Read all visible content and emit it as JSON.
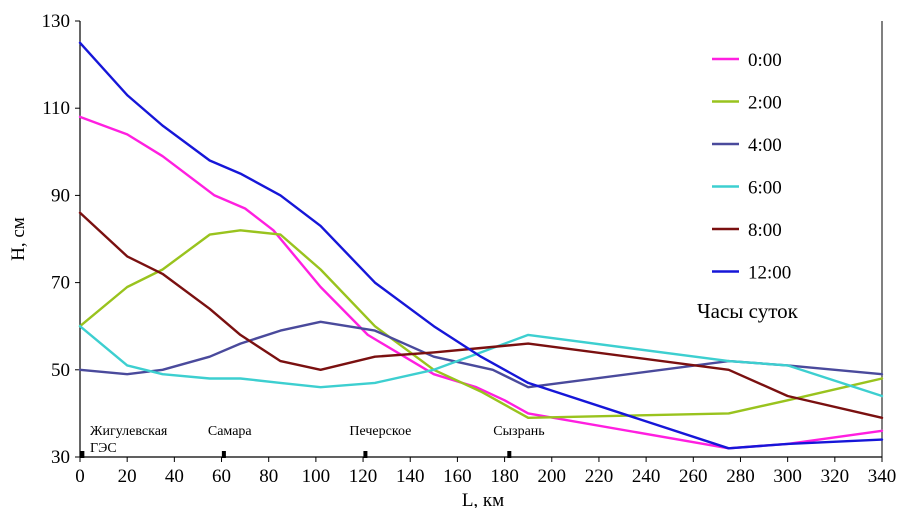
{
  "chart_data": {
    "type": "line",
    "xlabel": "L, км",
    "ylabel": "H, см",
    "xlim": [
      0,
      340
    ],
    "ylim": [
      30,
      130
    ],
    "xticks": [
      0,
      20,
      40,
      60,
      80,
      100,
      120,
      140,
      160,
      180,
      200,
      220,
      240,
      260,
      280,
      300,
      320,
      340
    ],
    "yticks": [
      30,
      50,
      70,
      90,
      110,
      130
    ],
    "grid": false,
    "legend_title": "Часы суток",
    "legend_position": "right",
    "annotations": [
      {
        "label": "Жигулевская ГЭС",
        "lines": [
          "Жигулевская",
          "ГЭС"
        ],
        "x": 1
      },
      {
        "label": "Самара",
        "lines": [
          "Самара"
        ],
        "x": 61
      },
      {
        "label": "Печерское",
        "lines": [
          "Печерское"
        ],
        "x": 121
      },
      {
        "label": "Сызрань",
        "lines": [
          "Сызрань"
        ],
        "x": 182
      }
    ],
    "series": [
      {
        "name": "0:00",
        "color": "#ff1fe0",
        "points": [
          [
            0,
            108
          ],
          [
            20,
            104
          ],
          [
            35,
            99
          ],
          [
            57,
            90
          ],
          [
            70,
            87
          ],
          [
            82,
            82
          ],
          [
            102,
            69
          ],
          [
            122,
            58
          ],
          [
            150,
            49
          ],
          [
            168,
            46
          ],
          [
            180,
            43
          ],
          [
            190,
            40
          ],
          [
            275,
            32
          ],
          [
            300,
            33
          ],
          [
            340,
            36
          ]
        ]
      },
      {
        "name": "2:00",
        "color": "#99c31e",
        "points": [
          [
            0,
            60
          ],
          [
            20,
            69
          ],
          [
            35,
            73
          ],
          [
            55,
            81
          ],
          [
            68,
            82
          ],
          [
            85,
            81
          ],
          [
            102,
            73
          ],
          [
            125,
            60
          ],
          [
            150,
            50
          ],
          [
            170,
            45
          ],
          [
            190,
            39
          ],
          [
            275,
            40
          ],
          [
            300,
            43
          ],
          [
            340,
            48
          ]
        ]
      },
      {
        "name": "4:00",
        "color": "#4a4a9c",
        "points": [
          [
            0,
            50
          ],
          [
            20,
            49
          ],
          [
            35,
            50
          ],
          [
            55,
            53
          ],
          [
            68,
            56
          ],
          [
            85,
            59
          ],
          [
            102,
            61
          ],
          [
            125,
            59
          ],
          [
            150,
            53
          ],
          [
            175,
            50
          ],
          [
            190,
            46
          ],
          [
            275,
            52
          ],
          [
            300,
            51
          ],
          [
            340,
            49
          ]
        ]
      },
      {
        "name": "6:00",
        "color": "#3dcfd0",
        "points": [
          [
            0,
            60
          ],
          [
            20,
            51
          ],
          [
            35,
            49
          ],
          [
            55,
            48
          ],
          [
            68,
            48
          ],
          [
            85,
            47
          ],
          [
            102,
            46
          ],
          [
            125,
            47
          ],
          [
            150,
            50
          ],
          [
            170,
            54
          ],
          [
            190,
            58
          ],
          [
            275,
            52
          ],
          [
            300,
            51
          ],
          [
            340,
            44
          ]
        ]
      },
      {
        "name": "8:00",
        "color": "#7a1010",
        "points": [
          [
            0,
            86
          ],
          [
            20,
            76
          ],
          [
            35,
            72
          ],
          [
            55,
            64
          ],
          [
            68,
            58
          ],
          [
            85,
            52
          ],
          [
            102,
            50
          ],
          [
            125,
            53
          ],
          [
            150,
            54
          ],
          [
            170,
            55
          ],
          [
            190,
            56
          ],
          [
            275,
            50
          ],
          [
            300,
            44
          ],
          [
            340,
            39
          ]
        ]
      },
      {
        "name": "12:00",
        "color": "#1616d8",
        "points": [
          [
            0,
            125
          ],
          [
            20,
            113
          ],
          [
            35,
            106
          ],
          [
            55,
            98
          ],
          [
            68,
            95
          ],
          [
            85,
            90
          ],
          [
            102,
            83
          ],
          [
            125,
            70
          ],
          [
            150,
            60
          ],
          [
            170,
            53
          ],
          [
            190,
            47
          ],
          [
            275,
            32
          ],
          [
            300,
            33
          ],
          [
            340,
            34
          ]
        ]
      }
    ]
  }
}
